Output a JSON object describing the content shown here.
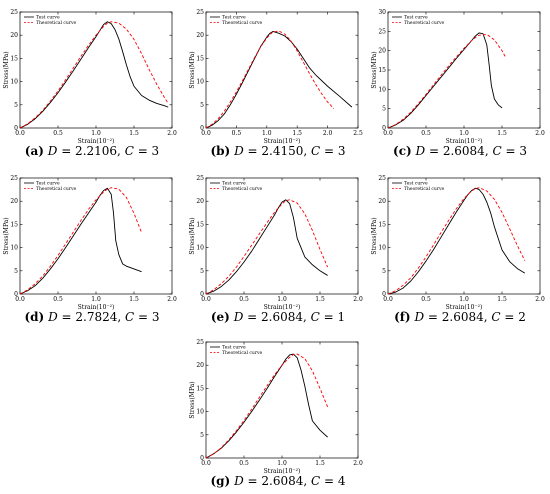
{
  "chart_data": [
    {
      "type": "line",
      "panel_label": "(a)",
      "caption": {
        "D_label": "D",
        "D_value": "2.2106",
        "C_label": "C",
        "C_value": "3"
      },
      "xlabel": "Strain(10⁻²)",
      "ylabel": "Stress(MPa)",
      "xlim": [
        0,
        2.0
      ],
      "ylim": [
        0,
        25
      ],
      "xticks": [
        "0.0",
        "0.5",
        "1.0",
        "1.5",
        "2.0"
      ],
      "yticks": [
        "0",
        "5",
        "10",
        "15",
        "20",
        "25"
      ],
      "legend": {
        "position": "top-left"
      },
      "series": [
        {
          "name": "Test curve",
          "color": "#000000",
          "dash": "solid",
          "x": [
            0,
            0.1,
            0.2,
            0.3,
            0.4,
            0.5,
            0.6,
            0.7,
            0.8,
            0.9,
            1.0,
            1.05,
            1.1,
            1.15,
            1.2,
            1.25,
            1.3,
            1.35,
            1.4,
            1.45,
            1.5,
            1.6,
            1.7,
            1.8,
            1.9,
            1.95
          ],
          "y": [
            0,
            0.8,
            2.0,
            3.6,
            5.5,
            7.6,
            9.9,
            12.3,
            14.8,
            17.3,
            19.7,
            21.0,
            22.3,
            22.9,
            22.5,
            21.2,
            19.2,
            16.5,
            13.6,
            11.0,
            9.0,
            7.0,
            6.0,
            5.3,
            4.8,
            4.5
          ]
        },
        {
          "name": "Theoretical curve",
          "color": "#ff0000",
          "dash": "dashed",
          "x": [
            0,
            0.1,
            0.2,
            0.3,
            0.4,
            0.5,
            0.6,
            0.7,
            0.8,
            0.9,
            1.0,
            1.1,
            1.15,
            1.2,
            1.3,
            1.4,
            1.5,
            1.6,
            1.7,
            1.8,
            1.9,
            1.95
          ],
          "y": [
            0,
            0.9,
            2.2,
            3.8,
            5.8,
            8.0,
            10.4,
            12.9,
            15.4,
            17.8,
            20.0,
            21.9,
            22.6,
            22.9,
            22.6,
            21.3,
            19.1,
            16.0,
            12.6,
            9.4,
            6.6,
            5.3
          ]
        }
      ]
    },
    {
      "type": "line",
      "panel_label": "(b)",
      "caption": {
        "D_label": "D",
        "D_value": "2.4150",
        "C_label": "C",
        "C_value": "3"
      },
      "xlabel": "Strain(10⁻²)",
      "ylabel": "Stress(MPa)",
      "xlim": [
        0,
        2.5
      ],
      "ylim": [
        0,
        25
      ],
      "xticks": [
        "0.0",
        "0.5",
        "1.0",
        "1.5",
        "2.0",
        "2.5"
      ],
      "yticks": [
        "0",
        "5",
        "10",
        "15",
        "20",
        "25"
      ],
      "legend": {
        "position": "top-left"
      },
      "series": [
        {
          "name": "Test curve",
          "color": "#000000",
          "dash": "solid",
          "x": [
            0,
            0.1,
            0.2,
            0.3,
            0.4,
            0.5,
            0.6,
            0.7,
            0.8,
            0.9,
            1.0,
            1.05,
            1.1,
            1.2,
            1.3,
            1.4,
            1.5,
            1.6,
            1.7,
            1.8,
            2.0,
            2.2,
            2.4
          ],
          "y": [
            0,
            0.6,
            1.6,
            3.0,
            5.0,
            7.3,
            9.8,
            12.4,
            15.0,
            17.6,
            19.6,
            20.4,
            20.8,
            20.4,
            19.8,
            18.6,
            17.0,
            15.0,
            13.0,
            11.5,
            9.0,
            6.8,
            4.5
          ]
        },
        {
          "name": "Theoretical curve",
          "color": "#ff0000",
          "dash": "dashed",
          "x": [
            0,
            0.1,
            0.2,
            0.3,
            0.4,
            0.5,
            0.6,
            0.7,
            0.8,
            0.9,
            1.0,
            1.1,
            1.2,
            1.3,
            1.4,
            1.5,
            1.6,
            1.7,
            1.8,
            1.9,
            2.0,
            2.1
          ],
          "y": [
            0,
            0.8,
            2.0,
            3.6,
            5.6,
            7.8,
            10.2,
            12.7,
            15.2,
            17.5,
            19.4,
            20.7,
            20.9,
            20.2,
            18.7,
            16.6,
            14.2,
            11.8,
            9.5,
            7.4,
            5.6,
            4.2
          ]
        }
      ]
    },
    {
      "type": "line",
      "panel_label": "(c)",
      "caption": {
        "D_label": "D",
        "D_value": "2.6084",
        "C_label": "C",
        "C_value": "3"
      },
      "xlabel": "Strain(10⁻²)",
      "ylabel": "Stress(MPa)",
      "xlim": [
        0,
        2.0
      ],
      "ylim": [
        0,
        30
      ],
      "xticks": [
        "0.0",
        "0.5",
        "1.0",
        "1.5",
        "2.0"
      ],
      "yticks": [
        "0",
        "5",
        "10",
        "15",
        "20",
        "25",
        "30"
      ],
      "legend": {
        "position": "top-left"
      },
      "series": [
        {
          "name": "Test curve",
          "color": "#000000",
          "dash": "solid",
          "x": [
            0,
            0.1,
            0.2,
            0.3,
            0.4,
            0.5,
            0.6,
            0.7,
            0.8,
            0.9,
            1.0,
            1.1,
            1.15,
            1.2,
            1.25,
            1.3,
            1.33,
            1.36,
            1.4,
            1.45,
            1.5
          ],
          "y": [
            0,
            0.8,
            2.0,
            3.8,
            6.0,
            8.4,
            10.8,
            13.2,
            15.6,
            18.0,
            20.3,
            22.6,
            23.8,
            24.6,
            24.4,
            21.5,
            16.5,
            11.0,
            7.5,
            6.0,
            5.2
          ]
        },
        {
          "name": "Theoretical curve",
          "color": "#ff0000",
          "dash": "dashed",
          "x": [
            0,
            0.1,
            0.2,
            0.3,
            0.4,
            0.5,
            0.6,
            0.7,
            0.8,
            0.9,
            1.0,
            1.1,
            1.15,
            1.2,
            1.3,
            1.4,
            1.5,
            1.55
          ],
          "y": [
            0,
            0.9,
            2.3,
            4.1,
            6.3,
            8.7,
            11.2,
            13.7,
            16.1,
            18.4,
            20.6,
            22.6,
            23.4,
            24.0,
            24.2,
            22.8,
            20.0,
            18.2
          ]
        }
      ]
    },
    {
      "type": "line",
      "panel_label": "(d)",
      "caption": {
        "D_label": "D",
        "D_value": "2.7824",
        "C_label": "C",
        "C_value": "3"
      },
      "xlabel": "Strain(10⁻²)",
      "ylabel": "Stress(MPa)",
      "xlim": [
        0,
        2.0
      ],
      "ylim": [
        0,
        25
      ],
      "xticks": [
        "0.0",
        "0.5",
        "1.0",
        "1.5",
        "2.0"
      ],
      "yticks": [
        "0",
        "5",
        "10",
        "15",
        "20",
        "25"
      ],
      "legend": {
        "position": "top-left"
      },
      "series": [
        {
          "name": "Test curve",
          "color": "#000000",
          "dash": "solid",
          "x": [
            0,
            0.1,
            0.2,
            0.3,
            0.4,
            0.5,
            0.6,
            0.7,
            0.8,
            0.9,
            1.0,
            1.05,
            1.1,
            1.15,
            1.2,
            1.23,
            1.26,
            1.3,
            1.35,
            1.4,
            1.5,
            1.6
          ],
          "y": [
            0,
            0.7,
            1.8,
            3.4,
            5.4,
            7.6,
            10.0,
            12.5,
            15.0,
            17.4,
            19.8,
            21.2,
            22.3,
            22.8,
            21.5,
            17.5,
            11.5,
            8.5,
            6.5,
            6.0,
            5.4,
            4.8
          ]
        },
        {
          "name": "Theoretical curve",
          "color": "#ff0000",
          "dash": "dashed",
          "x": [
            0,
            0.1,
            0.2,
            0.3,
            0.4,
            0.5,
            0.6,
            0.7,
            0.8,
            0.9,
            1.0,
            1.1,
            1.15,
            1.2,
            1.3,
            1.4,
            1.5,
            1.6
          ],
          "y": [
            0,
            0.9,
            2.2,
            3.9,
            6.0,
            8.3,
            10.8,
            13.3,
            15.8,
            18.2,
            20.3,
            22.0,
            22.6,
            22.9,
            22.6,
            20.8,
            17.4,
            13.2
          ]
        }
      ]
    },
    {
      "type": "line",
      "panel_label": "(e)",
      "caption": {
        "D_label": "D",
        "D_value": "2.6084",
        "C_label": "C",
        "C_value": "1"
      },
      "xlabel": "Strain(10⁻²)",
      "ylabel": "Stress(MPa)",
      "xlim": [
        0,
        2.0
      ],
      "ylim": [
        0,
        25
      ],
      "xticks": [
        "0.0",
        "0.5",
        "1.0",
        "1.5",
        "2.0"
      ],
      "yticks": [
        "0",
        "5",
        "10",
        "15",
        "20",
        "25"
      ],
      "legend": {
        "position": "top-left"
      },
      "series": [
        {
          "name": "Test curve",
          "color": "#000000",
          "dash": "solid",
          "x": [
            0,
            0.1,
            0.2,
            0.3,
            0.4,
            0.5,
            0.6,
            0.7,
            0.8,
            0.9,
            0.95,
            1.0,
            1.05,
            1.1,
            1.15,
            1.2,
            1.3,
            1.4,
            1.5,
            1.6
          ],
          "y": [
            0,
            0.6,
            1.6,
            3.0,
            4.8,
            6.9,
            9.2,
            11.8,
            14.4,
            17.0,
            18.5,
            19.8,
            20.3,
            19.5,
            16.5,
            12.0,
            8.0,
            6.3,
            5.0,
            4.0
          ]
        },
        {
          "name": "Theoretical curve",
          "color": "#ff0000",
          "dash": "dashed",
          "x": [
            0,
            0.1,
            0.2,
            0.3,
            0.4,
            0.5,
            0.6,
            0.7,
            0.8,
            0.9,
            1.0,
            1.05,
            1.1,
            1.2,
            1.3,
            1.4,
            1.5,
            1.6
          ],
          "y": [
            0,
            0.9,
            2.2,
            3.8,
            5.8,
            8.1,
            10.5,
            12.9,
            15.3,
            17.6,
            19.4,
            20.1,
            20.3,
            19.6,
            17.3,
            13.7,
            9.6,
            5.8
          ]
        }
      ]
    },
    {
      "type": "line",
      "panel_label": "(f)",
      "caption": {
        "D_label": "D",
        "D_value": "2.6084",
        "C_label": "C",
        "C_value": "2"
      },
      "xlabel": "Strain(10⁻²)",
      "ylabel": "Stress(MPa)",
      "xlim": [
        0,
        2.0
      ],
      "ylim": [
        0,
        25
      ],
      "xticks": [
        "0.0",
        "0.5",
        "1.0",
        "1.5",
        "2.0"
      ],
      "yticks": [
        "0",
        "5",
        "10",
        "15",
        "20",
        "25"
      ],
      "legend": {
        "position": "top-left"
      },
      "series": [
        {
          "name": "Test curve",
          "color": "#000000",
          "dash": "solid",
          "x": [
            0,
            0.1,
            0.2,
            0.3,
            0.4,
            0.5,
            0.6,
            0.7,
            0.8,
            0.9,
            1.0,
            1.05,
            1.1,
            1.15,
            1.2,
            1.25,
            1.3,
            1.35,
            1.4,
            1.5,
            1.6,
            1.7,
            1.8
          ],
          "y": [
            0,
            0.4,
            1.3,
            2.8,
            4.8,
            7.1,
            9.6,
            12.3,
            15.0,
            17.7,
            20.2,
            21.4,
            22.3,
            22.8,
            22.5,
            21.5,
            19.8,
            17.5,
            14.5,
            9.5,
            7.0,
            5.5,
            4.5
          ]
        },
        {
          "name": "Theoretical curve",
          "color": "#ff0000",
          "dash": "dashed",
          "x": [
            0,
            0.1,
            0.2,
            0.3,
            0.4,
            0.5,
            0.6,
            0.7,
            0.8,
            0.9,
            1.0,
            1.1,
            1.15,
            1.2,
            1.3,
            1.4,
            1.5,
            1.6,
            1.7,
            1.8
          ],
          "y": [
            0,
            0.7,
            1.9,
            3.5,
            5.6,
            8.0,
            10.6,
            13.3,
            15.9,
            18.4,
            20.6,
            22.2,
            22.7,
            22.9,
            22.2,
            20.4,
            17.6,
            14.1,
            10.5,
            7.2
          ]
        }
      ]
    },
    {
      "type": "line",
      "panel_label": "(g)",
      "caption": {
        "D_label": "D",
        "D_value": "2.6084",
        "C_label": "C",
        "C_value": "4"
      },
      "xlabel": "Strain(10⁻²)",
      "ylabel": "Stress(MPa)",
      "xlim": [
        0,
        2.0
      ],
      "ylim": [
        0,
        25
      ],
      "xticks": [
        "0.0",
        "0.5",
        "1.0",
        "1.5",
        "2.0"
      ],
      "yticks": [
        "0",
        "5",
        "10",
        "15",
        "20",
        "25"
      ],
      "legend": {
        "position": "top-left"
      },
      "series": [
        {
          "name": "Test curve",
          "color": "#000000",
          "dash": "solid",
          "x": [
            0,
            0.1,
            0.2,
            0.3,
            0.4,
            0.5,
            0.6,
            0.7,
            0.8,
            0.9,
            1.0,
            1.05,
            1.1,
            1.15,
            1.2,
            1.25,
            1.3,
            1.35,
            1.4,
            1.5,
            1.6
          ],
          "y": [
            0,
            0.9,
            2.1,
            3.7,
            5.6,
            7.7,
            10.0,
            12.4,
            14.9,
            17.5,
            20.0,
            21.3,
            22.2,
            22.4,
            21.6,
            19.0,
            15.5,
            11.5,
            8.0,
            6.0,
            4.5
          ]
        },
        {
          "name": "Theoretical curve",
          "color": "#ff0000",
          "dash": "dashed",
          "x": [
            0,
            0.1,
            0.2,
            0.3,
            0.4,
            0.5,
            0.6,
            0.7,
            0.8,
            0.9,
            1.0,
            1.1,
            1.15,
            1.2,
            1.3,
            1.4,
            1.5,
            1.6
          ],
          "y": [
            0,
            0.9,
            2.2,
            3.9,
            5.9,
            8.1,
            10.5,
            13.0,
            15.5,
            17.9,
            20.0,
            21.7,
            22.3,
            22.4,
            21.4,
            18.8,
            15.0,
            11.0
          ]
        }
      ]
    }
  ]
}
